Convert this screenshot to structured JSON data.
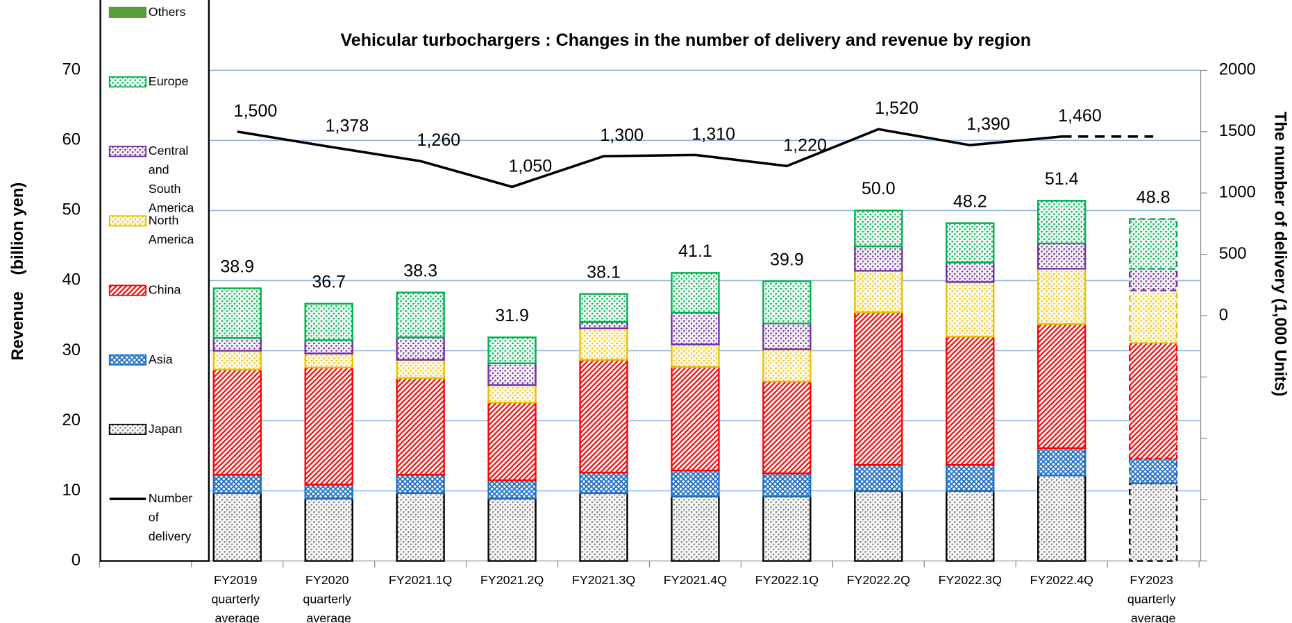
{
  "chart_data": {
    "type": "stacked_bar_line",
    "title": "Vehicular turbochargers : Changes in the number of delivery and revenue by region",
    "y_label": "Revenue　(billion yen)",
    "y2_label": "The number of delivery (1,000 Units)",
    "categories": [
      "FY2019 quarterly average",
      "FY2020 quarterly average",
      "FY2021.1Q",
      "FY2021.2Q",
      "FY2021.3Q",
      "FY2021.4Q",
      "FY2022.1Q",
      "FY2022.2Q",
      "FY2022.3Q",
      "FY2022.4Q",
      "FY2023 quarterly average"
    ],
    "series": [
      {
        "name": "Japan",
        "color": "#7f7f7f",
        "border": "#000000",
        "pattern": "dots",
        "values": [
          9.7,
          8.9,
          9.7,
          8.9,
          9.7,
          9.2,
          9.2,
          10.0,
          10.0,
          12.2,
          11.1
        ]
      },
      {
        "name": "Asia",
        "color": "#1f6fc4",
        "border": "#1f6fc4",
        "pattern": "cross",
        "values": [
          2.6,
          2.0,
          2.6,
          2.6,
          2.9,
          3.7,
          3.3,
          3.7,
          3.7,
          3.9,
          3.5
        ]
      },
      {
        "name": "China",
        "color": "#ff0000",
        "border": "#ff0000",
        "pattern": "diagonal",
        "values": [
          15.0,
          16.7,
          13.8,
          11.1,
          16.1,
          14.8,
          13.1,
          21.8,
          18.3,
          17.7,
          16.5
        ]
      },
      {
        "name": "North America",
        "color": "#f5c400",
        "border": "#e8c000",
        "pattern": "dots",
        "values": [
          2.7,
          2.0,
          2.6,
          2.5,
          4.5,
          3.2,
          4.6,
          5.9,
          7.8,
          7.9,
          7.5
        ]
      },
      {
        "name": "Central and South America",
        "color": "#7030a0",
        "border": "#7030a0",
        "pattern": "dots",
        "values": [
          1.8,
          1.9,
          3.2,
          3.1,
          0.9,
          4.5,
          3.7,
          3.5,
          2.8,
          3.6,
          3.1
        ]
      },
      {
        "name": "Europe",
        "color": "#00b050",
        "border": "#00b050",
        "pattern": "dots",
        "values": [
          7.1,
          5.2,
          6.4,
          3.7,
          4.0,
          5.7,
          6.0,
          5.1,
          5.6,
          6.1,
          7.1
        ]
      },
      {
        "name": "Others",
        "color": "#5b9b3a",
        "border": "#5b9b3a",
        "pattern": "solid",
        "values": [
          0,
          0,
          0,
          0,
          0,
          0,
          0,
          0,
          0,
          0,
          0
        ]
      }
    ],
    "totals": {
      "values": [
        38.9,
        36.7,
        38.3,
        31.9,
        38.1,
        41.1,
        39.9,
        50.0,
        48.2,
        51.4,
        48.8
      ],
      "value_labels": [
        "38.9",
        "36.7",
        "38.3",
        "31.9",
        "38.1",
        "41.1",
        "39.9",
        "50.0",
        "48.2",
        "51.4",
        "48.8"
      ]
    },
    "line": {
      "name": "Number of delivery",
      "color": "#000000",
      "axis": "y2",
      "values": [
        1500,
        1378,
        1260,
        1050,
        1300,
        1310,
        1220,
        1520,
        1390,
        1460,
        1460
      ],
      "value_labels": [
        "1,500",
        "1,378",
        "1,260",
        "1,050",
        "1,300",
        "1,310",
        "1,220",
        "1,520",
        "1,390",
        "1,460",
        null
      ]
    },
    "estimate_index": 10,
    "ylim": [
      0,
      70
    ],
    "yticks": [
      0,
      10,
      20,
      30,
      40,
      50,
      60,
      70
    ],
    "y2lim": [
      -2000,
      2000
    ],
    "y2ticks": [
      0,
      500,
      1000,
      1500,
      2000
    ],
    "y2ticks_unlabeled": [
      -500,
      -1000,
      -1500,
      -2000
    ],
    "grid": true,
    "grid_color": "#8db4e2",
    "legend": "left"
  }
}
